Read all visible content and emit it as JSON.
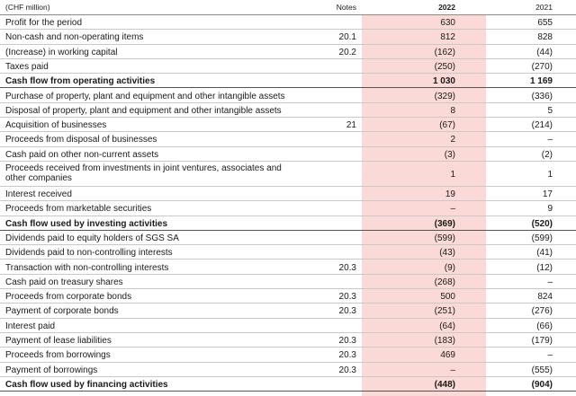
{
  "header": {
    "unit": "(CHF million)",
    "notes": "Notes",
    "year_current": "2022",
    "year_prior": "2021"
  },
  "rows": [
    {
      "label": "Profit for the period",
      "notes": "",
      "y2022": "630",
      "y2021": "655",
      "bold": false
    },
    {
      "label": "Non-cash and non-operating items",
      "notes": "20.1",
      "y2022": "812",
      "y2021": "828",
      "bold": false
    },
    {
      "label": "(Increase) in working capital",
      "notes": "20.2",
      "y2022": "(162)",
      "y2021": "(44)",
      "bold": false
    },
    {
      "label": "Taxes paid",
      "notes": "",
      "y2022": "(250)",
      "y2021": "(270)",
      "bold": false
    },
    {
      "label": "Cash flow from operating activities",
      "notes": "",
      "y2022": "1 030",
      "y2021": "1 169",
      "bold": true
    },
    {
      "label": "Purchase of property, plant and equipment and other intangible assets",
      "notes": "",
      "y2022": "(329)",
      "y2021": "(336)",
      "bold": false
    },
    {
      "label": "Disposal of property, plant and equipment and other intangible assets",
      "notes": "",
      "y2022": "8",
      "y2021": "5",
      "bold": false
    },
    {
      "label": "Acquisition of businesses",
      "notes": "21",
      "y2022": "(67)",
      "y2021": "(214)",
      "bold": false
    },
    {
      "label": "Proceeds from disposal of businesses",
      "notes": "",
      "y2022": "2",
      "y2021": "–",
      "bold": false
    },
    {
      "label": "Cash paid on other non-current assets",
      "notes": "",
      "y2022": "(3)",
      "y2021": "(2)",
      "bold": false
    },
    {
      "label": "Proceeds received from investments in joint ventures, associates and",
      "label2": "other companies",
      "notes": "",
      "y2022": "1",
      "y2021": "1",
      "bold": false
    },
    {
      "label": "Interest received",
      "notes": "",
      "y2022": "19",
      "y2021": "17",
      "bold": false
    },
    {
      "label": "Proceeds from marketable securities",
      "notes": "",
      "y2022": "–",
      "y2021": "9",
      "bold": false
    },
    {
      "label": "Cash flow used by investing activities",
      "notes": "",
      "y2022": "(369)",
      "y2021": "(520)",
      "bold": true
    },
    {
      "label": "Dividends paid to equity holders of SGS SA",
      "notes": "",
      "y2022": "(599)",
      "y2021": "(599)",
      "bold": false
    },
    {
      "label": "Dividends paid to non-controlling interests",
      "notes": "",
      "y2022": "(43)",
      "y2021": "(41)",
      "bold": false
    },
    {
      "label": "Transaction with non-controlling interests",
      "notes": "20.3",
      "y2022": "(9)",
      "y2021": "(12)",
      "bold": false
    },
    {
      "label": "Cash paid on treasury shares",
      "notes": "",
      "y2022": "(268)",
      "y2021": "–",
      "bold": false
    },
    {
      "label": "Proceeds from corporate bonds",
      "notes": "20.3",
      "y2022": "500",
      "y2021": "824",
      "bold": false
    },
    {
      "label": "Payment of corporate bonds",
      "notes": "20.3",
      "y2022": "(251)",
      "y2021": "(276)",
      "bold": false
    },
    {
      "label": "Interest paid",
      "notes": "",
      "y2022": "(64)",
      "y2021": "(66)",
      "bold": false
    },
    {
      "label": "Payment of lease liabilities",
      "notes": "20.3",
      "y2022": "(183)",
      "y2021": "(179)",
      "bold": false
    },
    {
      "label": "Proceeds from borrowings",
      "notes": "20.3",
      "y2022": "469",
      "y2021": "–",
      "bold": false
    },
    {
      "label": "Payment of borrowings",
      "notes": "20.3",
      "y2022": "–",
      "y2021": "(555)",
      "bold": false
    },
    {
      "label": "Cash flow used by financing activities",
      "notes": "",
      "y2022": "(448)",
      "y2021": "(904)",
      "bold": true
    }
  ]
}
